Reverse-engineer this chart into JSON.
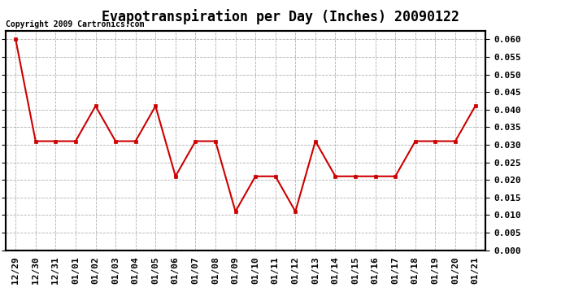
{
  "title": "Evapotranspiration per Day (Inches) 20090122",
  "copyright_text": "Copyright 2009 Cartronics.com",
  "x_labels": [
    "12/29",
    "12/30",
    "12/31",
    "01/01",
    "01/02",
    "01/03",
    "01/04",
    "01/05",
    "01/06",
    "01/07",
    "01/08",
    "01/09",
    "01/10",
    "01/11",
    "01/12",
    "01/13",
    "01/14",
    "01/15",
    "01/16",
    "01/17",
    "01/18",
    "01/19",
    "01/20",
    "01/21"
  ],
  "y_values": [
    0.06,
    0.031,
    0.031,
    0.031,
    0.041,
    0.031,
    0.031,
    0.041,
    0.021,
    0.031,
    0.031,
    0.011,
    0.021,
    0.021,
    0.011,
    0.031,
    0.021,
    0.021,
    0.021,
    0.021,
    0.031,
    0.031,
    0.031,
    0.041
  ],
  "line_color": "#cc0000",
  "marker": "s",
  "marker_size": 3.5,
  "line_width": 1.5,
  "ylim": [
    0.0,
    0.0625
  ],
  "ytick_min": 0.0,
  "ytick_max": 0.061,
  "ytick_step": 0.005,
  "background_color": "#ffffff",
  "grid_color": "#b0b0b0",
  "title_fontsize": 12,
  "tick_fontsize": 8,
  "copyright_fontsize": 7
}
